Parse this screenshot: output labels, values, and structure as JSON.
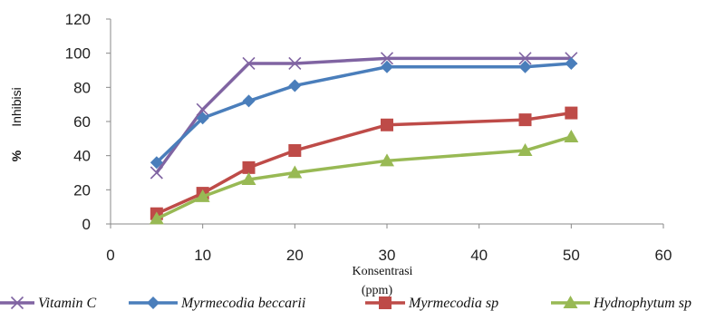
{
  "chart_data": {
    "type": "line",
    "xlabel_line1": "Konsentrasi",
    "xlabel_line2": "(ppm)",
    "ylabel_prefix": "%",
    "ylabel_main": "Inhibisi",
    "xlim": [
      0,
      60
    ],
    "ylim": [
      0,
      120
    ],
    "xticks": [
      0,
      10,
      20,
      30,
      40,
      50,
      60
    ],
    "yticks": [
      0,
      20,
      40,
      60,
      80,
      100,
      120
    ],
    "x": [
      5,
      10,
      15,
      20,
      30,
      45,
      50
    ],
    "legend_position": "bottom",
    "series": [
      {
        "name": "Vitamin C",
        "marker": "x",
        "color": "#8064a2",
        "values": [
          30,
          67,
          94,
          94,
          97,
          97,
          97
        ]
      },
      {
        "name": "Myrmecodia beccarii",
        "marker": "diamond",
        "color": "#4a7ebb",
        "values": [
          36,
          62,
          72,
          81,
          92,
          92,
          94
        ]
      },
      {
        "name": "Myrmecodia sp",
        "marker": "square",
        "color": "#be4b48",
        "values": [
          6,
          18,
          33,
          43,
          58,
          61,
          65
        ]
      },
      {
        "name": "Hydnophytum sp",
        "marker": "triangle",
        "color": "#98b954",
        "values": [
          3,
          16,
          26,
          30,
          37,
          43,
          51
        ]
      }
    ]
  }
}
